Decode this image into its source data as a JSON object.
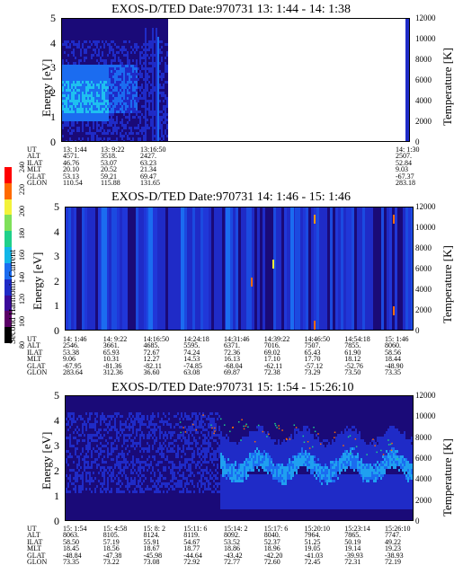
{
  "colorbar": {
    "label": "Second Harmonic Current",
    "ticks": [
      "80",
      "100",
      "120",
      "140",
      "160",
      "180",
      "200",
      "220",
      "240"
    ],
    "colors": [
      "#000000",
      "#5a0066",
      "#3a0a9a",
      "#1f2bc7",
      "#1b6cf0",
      "#12b6e8",
      "#1fd08a",
      "#7fe05a",
      "#f3f23a",
      "#ff6a00",
      "#ff0000"
    ]
  },
  "panels": [
    {
      "title": "EXOS-D/TED   Date:970731   13: 1:44 - 14: 1:38",
      "yticks": [
        "0",
        "1",
        "2",
        "3",
        "4",
        "5"
      ],
      "rticks": [
        "0",
        "2000",
        "4000",
        "6000",
        "8000",
        "10000",
        "12000"
      ],
      "ylabel": "Energy [eV]",
      "rlabel": "Temperature [K]",
      "info": {
        "labels": [
          "UT",
          "ALT",
          "ILAT",
          "MLT",
          "GLAT",
          "GLON"
        ],
        "cols": [
          [
            "13: 1:44",
            "4571.",
            "46.76",
            "20.10",
            "53.13",
            "110.54"
          ],
          [
            "13: 9:22",
            "3518.",
            "53.07",
            "20.52",
            "59.21",
            "115.88"
          ],
          [
            "13:16:50",
            "2427.",
            "63.23",
            "21.34",
            "69.47",
            "131.65"
          ],
          [
            "14: 1:30",
            "2507.",
            "52.84",
            "9.03",
            "-67.37",
            "283.18"
          ]
        ]
      }
    },
    {
      "title": "EXOS-D/TED   Date:970731   14: 1:46 - 15: 1:46",
      "yticks": [
        "0",
        "1",
        "2",
        "3",
        "4",
        "5"
      ],
      "rticks": [
        "0",
        "2000",
        "4000",
        "6000",
        "8000",
        "10000",
        "12000"
      ],
      "ylabel": "Energy [eV]",
      "rlabel": "Temperature [K]",
      "info": {
        "labels": [
          "UT",
          "ALT",
          "ILAT",
          "MLT",
          "GLAT",
          "GLON"
        ],
        "cols": [
          [
            "14: 1:46",
            "2546.",
            "53.38",
            "9.06",
            "-67.95",
            "283.64"
          ],
          [
            "14: 9:22",
            "3661.",
            "65.93",
            "10.31",
            "-81.36",
            "312.36"
          ],
          [
            "14:16:50",
            "4685.",
            "72.67",
            "12.27",
            "-82.11",
            "36.60"
          ],
          [
            "14:24:18",
            "5595.",
            "74.24",
            "14.53",
            "-74.85",
            "63.08"
          ],
          [
            "14:31:46",
            "6371.",
            "72.36",
            "16.13",
            "-68.04",
            "69.87"
          ],
          [
            "14:39:22",
            "7016.",
            "69.02",
            "17.10",
            "-62.11",
            "72.38"
          ],
          [
            "14:46:50",
            "7507.",
            "65.43",
            "17.70",
            "-57.12",
            "73.29"
          ],
          [
            "14:54:18",
            "7855.",
            "61.90",
            "18.12",
            "-52.76",
            "73.50"
          ],
          [
            "15: 1:46",
            "8060.",
            "58.56",
            "18.44",
            "-48.90",
            "73.35"
          ]
        ]
      }
    },
    {
      "title": "EXOS-D/TED   Date:970731   15: 1:54 - 15:26:10",
      "yticks": [
        "0",
        "1",
        "2",
        "3",
        "4",
        "5"
      ],
      "rticks": [
        "0",
        "2000",
        "4000",
        "6000",
        "8000",
        "10000",
        "12000"
      ],
      "ylabel": "Energy [eV]",
      "rlabel": "Temperature [K]",
      "info": {
        "labels": [
          "UT",
          "ALT",
          "ILAT",
          "MLT",
          "GLAT",
          "GLON"
        ],
        "cols": [
          [
            "15: 1:54",
            "8063.",
            "58.50",
            "18.45",
            "-48.84",
            "73.35"
          ],
          [
            "15: 4:58",
            "8105.",
            "57.19",
            "18.56",
            "-47.38",
            "73.22"
          ],
          [
            "15: 8: 2",
            "8124.",
            "55.91",
            "18.67",
            "-45.98",
            "73.08"
          ],
          [
            "15:11: 6",
            "8119.",
            "54.67",
            "18.77",
            "-44.64",
            "72.92"
          ],
          [
            "15:14: 2",
            "8092.",
            "53.52",
            "18.86",
            "-43.42",
            "72.77"
          ],
          [
            "15:17: 6",
            "8040.",
            "52.37",
            "18.96",
            "-42.20",
            "72.60"
          ],
          [
            "15:20:10",
            "7964.",
            "51.25",
            "19.05",
            "-41.03",
            "72.45"
          ],
          [
            "15:23:14",
            "7865.",
            "50.19",
            "19.14",
            "-39.93",
            "72.31"
          ],
          [
            "15:26:10",
            "7747.",
            "49.22",
            "19.23",
            "-38.93",
            "72.19"
          ]
        ]
      }
    }
  ],
  "chart_data": [
    {
      "type": "heatmap",
      "title": "EXOS-D/TED   Date:970731   13: 1:44 - 14: 1:38",
      "xlabel": "UT",
      "ylabel": "Energy [eV]",
      "y2label": "Temperature [K]",
      "ylim": [
        0,
        5
      ],
      "y2lim": [
        0,
        12000
      ],
      "x_ticks": [
        "13: 1:44",
        "13: 9:22",
        "13:16:50",
        "14: 1:30"
      ],
      "colorbar_label": "Second Harmonic Current",
      "colorbar_range": [
        80,
        240
      ]
    },
    {
      "type": "heatmap",
      "title": "EXOS-D/TED   Date:970731   14: 1:46 - 15: 1:46",
      "xlabel": "UT",
      "ylabel": "Energy [eV]",
      "y2label": "Temperature [K]",
      "ylim": [
        0,
        5
      ],
      "y2lim": [
        0,
        12000
      ],
      "x_ticks": [
        "14: 1:46",
        "14: 9:22",
        "14:16:50",
        "14:24:18",
        "14:31:46",
        "14:39:22",
        "14:46:50",
        "14:54:18",
        "15: 1:46"
      ],
      "colorbar_label": "Second Harmonic Current",
      "colorbar_range": [
        80,
        240
      ]
    },
    {
      "type": "heatmap",
      "title": "EXOS-D/TED   Date:970731   15: 1:54 - 15:26:10",
      "xlabel": "UT",
      "ylabel": "Energy [eV]",
      "y2label": "Temperature [K]",
      "ylim": [
        0,
        5
      ],
      "y2lim": [
        0,
        12000
      ],
      "x_ticks": [
        "15: 1:54",
        "15: 4:58",
        "15: 8: 2",
        "15:11: 6",
        "15:14: 2",
        "15:17: 6",
        "15:20:10",
        "15:23:14",
        "15:26:10"
      ],
      "colorbar_label": "Second Harmonic Current",
      "colorbar_range": [
        80,
        240
      ]
    }
  ]
}
